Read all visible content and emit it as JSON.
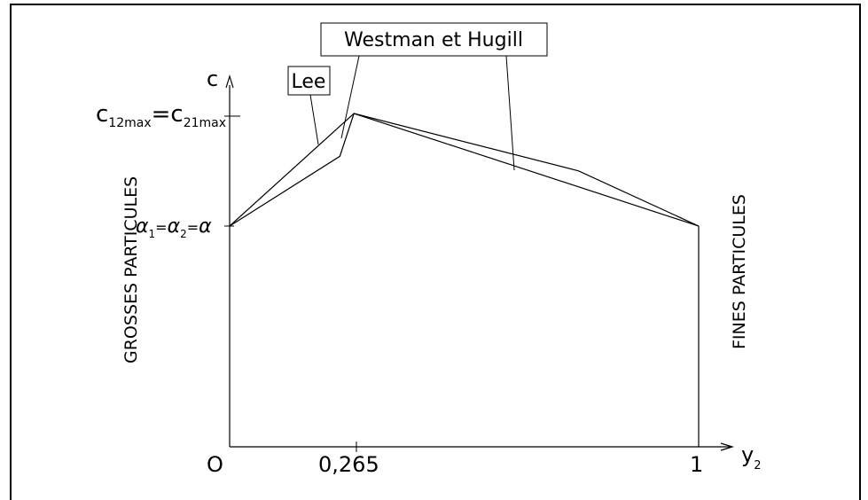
{
  "diagram": {
    "axes": {
      "y_axis_label": "c",
      "x_axis_label": "y",
      "x_axis_label_sub": "2",
      "origin_label": "O",
      "x_tick_mid": "0,265",
      "x_tick_end": "1"
    },
    "y_labels": {
      "cmax": {
        "c1": "c",
        "c1_sub": "12max",
        "eq": "=",
        "c2": "c",
        "c2_sub": "21max"
      },
      "alpha": {
        "a1": "α",
        "a1_sub": "1",
        "eq1": "=",
        "a2": "α",
        "a2_sub": "2",
        "eq2": "=",
        "a3": "α"
      }
    },
    "side_labels": {
      "left": "GROSSES PARTICULES",
      "right": "FINES PARTICULES"
    },
    "callouts": {
      "lee": "Lee",
      "westman": "Westman et Hugill"
    },
    "curves": [
      {
        "name": "Lee",
        "points": [
          [
            0,
            0
          ],
          [
            0.235,
            0.62
          ],
          [
            0.265,
            1.0
          ],
          [
            0.744,
            0.49
          ],
          [
            1.0,
            0
          ]
        ]
      },
      {
        "name": "Westman et Hugill",
        "points": [
          [
            0,
            0
          ],
          [
            0.265,
            1.0
          ],
          [
            1.0,
            0
          ]
        ]
      }
    ],
    "colors": {
      "line": "#000000",
      "background": "#ffffff"
    }
  }
}
